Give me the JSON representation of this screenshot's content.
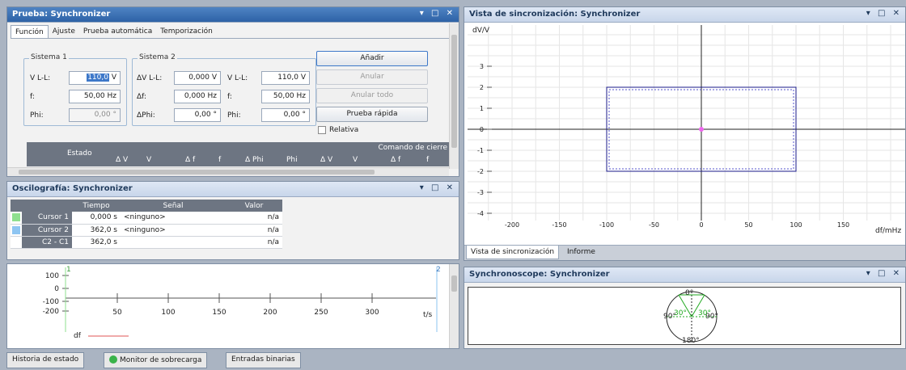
{
  "test_panel": {
    "title": "Prueba: Synchronizer",
    "tabs": [
      "Función",
      "Ajuste",
      "Prueba automática",
      "Temporización"
    ],
    "sistema1": {
      "title": "Sistema 1",
      "vll_label": "V L-L:",
      "vll_value": "110,0",
      "vll_unit": " V",
      "f_label": "f:",
      "f_value": "50,00 Hz",
      "phi_label": "Phi:",
      "phi_value": "0,00 °"
    },
    "sistema2": {
      "title": "Sistema 2",
      "dv_label": "ΔV L-L:",
      "dv_value": "0,000 V",
      "vll_label": "V L-L:",
      "vll_value": "110,0 V",
      "df_label": "Δf:",
      "df_value": "0,000 Hz",
      "f_label": "f:",
      "f_value": "50,00 Hz",
      "dphi_label": "ΔPhi:",
      "dphi_value": "0,00 °",
      "phi_label": "Phi:",
      "phi_value": "0,00 °"
    },
    "buttons": {
      "add": "Añadir",
      "undo": "Anular",
      "undo_all": "Anular todo",
      "quick_test": "Prueba rápida"
    },
    "relative_label": "Relativa",
    "table_headers": {
      "estado": "Estado",
      "comando": "Comando de cierre",
      "cols": [
        "Δ V",
        "V",
        "Δ f",
        "f",
        "Δ Phi",
        "Phi",
        "Δ V",
        "V",
        "Δ f",
        "f"
      ]
    }
  },
  "osc_panel": {
    "title": "Oscilografía: Synchronizer",
    "headers": [
      "Tiempo",
      "Señal",
      "Valor"
    ],
    "rows": [
      {
        "name": "Cursor 1",
        "time": "0,000 s",
        "signal": "<ninguno>",
        "value": "n/a",
        "color": "#8fe08f"
      },
      {
        "name": "Cursor 2",
        "time": "362,0 s",
        "signal": "<ninguno>",
        "value": "n/a",
        "color": "#8ec5f2"
      },
      {
        "name": "C2 - C1",
        "time": "362,0 s",
        "signal": "",
        "value": "n/a",
        "color": ""
      }
    ]
  },
  "plot_panel": {
    "y_ticks": [
      "100",
      "0",
      "-100",
      "-200"
    ],
    "x_ticks": [
      "50",
      "100",
      "150",
      "200",
      "250",
      "300"
    ],
    "x_unit": "t/s",
    "cursor1_label": "1",
    "cursor2_label": "2",
    "legend": "df",
    "legend_color": "#e05555"
  },
  "sync_view": {
    "title": "Vista de sincronización: Synchronizer",
    "y_label": "dV/V",
    "x_label": "df/mHz",
    "tabs": [
      "Vista de sincronización",
      "Informe"
    ],
    "chart_data": {
      "type": "scatter",
      "xlabel": "df/mHz",
      "ylabel": "dV/V",
      "xlim": [
        -220,
        220
      ],
      "ylim": [
        -4.5,
        4.5
      ],
      "x_ticks": [
        -200,
        -150,
        -100,
        -50,
        0,
        50,
        100,
        150
      ],
      "y_ticks": [
        3,
        2,
        1,
        0,
        -1,
        -2,
        -3,
        -4
      ],
      "grid": true,
      "rectangle": {
        "x": [
          -100,
          100
        ],
        "y": [
          -2,
          2
        ]
      },
      "point": {
        "x": 0,
        "y": 0
      }
    }
  },
  "synchroscope": {
    "title": "Synchronoscope: Synchronizer",
    "labels": {
      "top": "0°",
      "bottom": "180°",
      "left": "90°",
      "right": "90°",
      "left_green": "30°",
      "right_green": "30°"
    }
  },
  "bottom_tabs": [
    "Historia de estado",
    "Monitor de sobrecarga",
    "Entradas binarias"
  ]
}
